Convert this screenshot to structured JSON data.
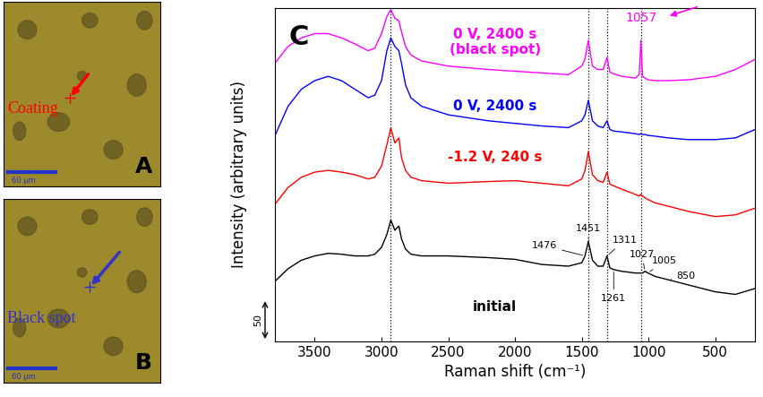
{
  "images": [
    {
      "letter": "A",
      "label": "Coating",
      "label_color": "#ff0000",
      "scale_bar": "60 µm"
    },
    {
      "letter": "B",
      "label": "Black spot",
      "label_color": "#3333cc",
      "scale_bar": "60 µm"
    }
  ],
  "chart_data": {
    "type": "line",
    "panel_letter": "C",
    "x_label": "Raman shift (cm⁻¹)",
    "y_label": "Intensity (arbitrary units)",
    "xlim": [
      3800,
      200
    ],
    "xticks": [
      3500,
      3000,
      2500,
      2000,
      1500,
      1000,
      500
    ],
    "ylim": [
      0,
      390
    ],
    "tick_labels": "x",
    "scale_bar": {
      "value": 50,
      "label": "50"
    },
    "dotted_lines": [
      2930,
      1451,
      1311,
      1057
    ],
    "x": [
      3800,
      3700,
      3600,
      3500,
      3400,
      3300,
      3200,
      3100,
      3050,
      3000,
      2960,
      2930,
      2900,
      2870,
      2850,
      2820,
      2780,
      2700,
      2500,
      2200,
      2000,
      1800,
      1600,
      1500,
      1476,
      1451,
      1420,
      1380,
      1340,
      1311,
      1290,
      1261,
      1200,
      1100,
      1070,
      1057,
      1045,
      1027,
      1005,
      950,
      850,
      700,
      500,
      350,
      200
    ],
    "series": [
      {
        "name": "initial",
        "color": "#000000",
        "values": [
          70,
          85,
          95,
          100,
          103,
          102,
          100,
          100,
          102,
          110,
          125,
          142,
          130,
          135,
          120,
          108,
          102,
          100,
          100,
          98,
          96,
          90,
          88,
          92,
          100,
          117,
          95,
          88,
          88,
          100,
          86,
          84,
          82,
          80,
          80,
          80,
          80,
          82,
          80,
          76,
          72,
          66,
          58,
          55,
          62
        ]
      },
      {
        "name": "-1.2 V, 240 s",
        "color": "#ff0000",
        "values": [
          160,
          180,
          192,
          198,
          200,
          198,
          195,
          190,
          192,
          205,
          230,
          250,
          232,
          238,
          215,
          200,
          192,
          188,
          185,
          187,
          188,
          185,
          182,
          190,
          200,
          222,
          195,
          188,
          186,
          198,
          184,
          182,
          178,
          172,
          170,
          172,
          170,
          168,
          166,
          162,
          158,
          152,
          146,
          148,
          156
        ]
      },
      {
        "name": "0 V, 2400 s",
        "color": "#0000ff",
        "values": [
          240,
          275,
          295,
          305,
          310,
          305,
          295,
          285,
          288,
          305,
          340,
          355,
          345,
          340,
          325,
          300,
          285,
          275,
          265,
          258,
          255,
          252,
          250,
          258,
          265,
          282,
          258,
          252,
          250,
          258,
          248,
          246,
          245,
          243,
          242,
          243,
          242,
          242,
          241,
          240,
          238,
          236,
          236,
          238,
          248
        ]
      },
      {
        "name": "0 V, 2400 s\n(black spot)",
        "color": "#ff00ff",
        "values": [
          325,
          345,
          355,
          360,
          360,
          355,
          348,
          340,
          343,
          360,
          380,
          388,
          378,
          375,
          362,
          345,
          335,
          328,
          322,
          318,
          316,
          314,
          312,
          322,
          330,
          352,
          322,
          318,
          318,
          332,
          315,
          313,
          310,
          308,
          312,
          352,
          310,
          308,
          306,
          305,
          305,
          306,
          310,
          318,
          330
        ]
      }
    ],
    "peak_labels": {
      "series": "initial",
      "values": [
        1476,
        1451,
        1311,
        1261,
        1027,
        1005,
        850
      ]
    },
    "marked_peak": {
      "series": "0 V, 2400 s\n(black spot)",
      "value": 1057
    }
  }
}
